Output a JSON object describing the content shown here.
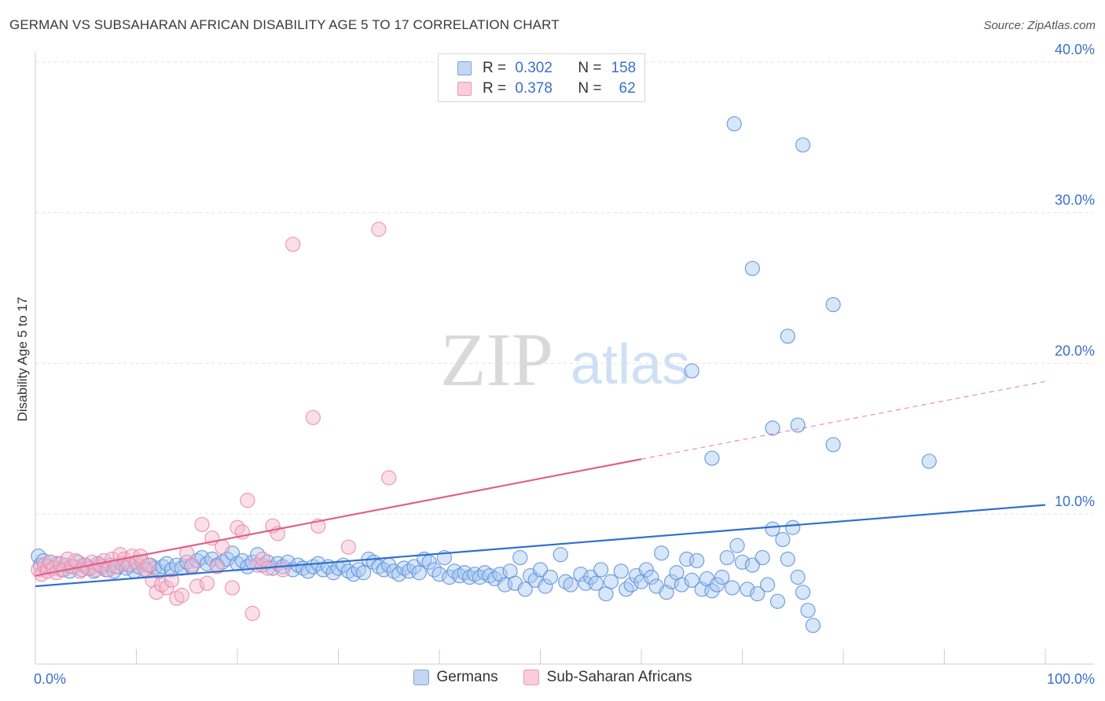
{
  "header": {
    "title": "GERMAN VS SUBSAHARAN AFRICAN DISABILITY AGE 5 TO 17 CORRELATION CHART",
    "source": "Source: ZipAtlas.com"
  },
  "watermark": {
    "zip": "ZIP",
    "atlas": "atlas"
  },
  "legend": {
    "rows": [
      {
        "r_label": "R =",
        "r_value": "0.302",
        "n_label": "N =",
        "n_value": "158",
        "color": "#a9c7f2"
      },
      {
        "r_label": "R =",
        "r_value": "0.378",
        "n_label": "N =",
        "n_value": "62",
        "color": "#f7b9cc"
      }
    ]
  },
  "bottom_legend": [
    {
      "label": "Germans",
      "color": "#a9c7f2"
    },
    {
      "label": "Sub-Saharan Africans",
      "color": "#f7b9cc"
    }
  ],
  "colors": {
    "germans_fill": "#a9c7f2",
    "germans_stroke": "#5b8fd8",
    "germans_line": "#2f6fd0",
    "africans_fill": "#f7b9cc",
    "africans_stroke": "#e889a6",
    "africans_line": "#e0608c",
    "axis_text": "#3a70c9",
    "grid": "#e3e3e3"
  },
  "chart_data": {
    "type": "scatter",
    "title": "GERMAN VS SUBSAHARAN AFRICAN DISABILITY AGE 5 TO 17 CORRELATION CHART",
    "xlabel": "",
    "ylabel": "Disability Age 5 to 17",
    "xlim": [
      0,
      100
    ],
    "ylim": [
      0,
      41
    ],
    "x_tick_labels": [
      {
        "value": 0,
        "label": "0.0%"
      },
      {
        "value": 100,
        "label": "100.0%"
      }
    ],
    "y_tick_labels": [
      {
        "value": 10,
        "label": "10.0%"
      },
      {
        "value": 20,
        "label": "20.0%"
      },
      {
        "value": 30,
        "label": "30.0%"
      },
      {
        "value": 40,
        "label": "40.0%"
      }
    ],
    "x_minor_ticks": [
      10,
      20,
      30,
      40,
      50,
      60,
      70,
      80,
      90,
      100
    ],
    "grid": true,
    "legend_position": "top-center",
    "series": [
      {
        "name": "Germans",
        "color": "#a9c7f2",
        "trend": {
          "x": [
            0,
            100
          ],
          "y": [
            5.2,
            10.6
          ],
          "dashed_from": null
        },
        "points": [
          [
            0.3,
            7.2
          ],
          [
            0.5,
            6.6
          ],
          [
            0.8,
            6.9
          ],
          [
            1.2,
            6.5
          ],
          [
            1.5,
            6.8
          ],
          [
            1.8,
            6.4
          ],
          [
            2.2,
            6.7
          ],
          [
            2.6,
            6.3
          ],
          [
            3.0,
            6.6
          ],
          [
            3.4,
            6.2
          ],
          [
            3.8,
            6.5
          ],
          [
            4.2,
            6.8
          ],
          [
            4.6,
            6.3
          ],
          [
            5.0,
            6.6
          ],
          [
            5.4,
            6.4
          ],
          [
            5.8,
            6.2
          ],
          [
            6.2,
            6.7
          ],
          [
            6.6,
            6.5
          ],
          [
            7.0,
            6.3
          ],
          [
            7.4,
            6.6
          ],
          [
            7.8,
            6.2
          ],
          [
            8.2,
            6.5
          ],
          [
            8.6,
            6.7
          ],
          [
            9.0,
            6.4
          ],
          [
            9.4,
            6.6
          ],
          [
            9.8,
            6.2
          ],
          [
            10.2,
            6.5
          ],
          [
            10.6,
            6.8
          ],
          [
            11.0,
            6.3
          ],
          [
            11.4,
            6.6
          ],
          [
            11.8,
            6.4
          ],
          [
            12.2,
            6.2
          ],
          [
            12.6,
            6.5
          ],
          [
            13.0,
            6.7
          ],
          [
            13.5,
            6.3
          ],
          [
            14.0,
            6.6
          ],
          [
            14.5,
            6.4
          ],
          [
            15.0,
            6.8
          ],
          [
            15.5,
            6.5
          ],
          [
            16.0,
            6.9
          ],
          [
            16.5,
            7.1
          ],
          [
            17.0,
            6.7
          ],
          [
            17.5,
            7.0
          ],
          [
            18.0,
            6.6
          ],
          [
            18.5,
            6.8
          ],
          [
            19.0,
            7.0
          ],
          [
            19.5,
            7.4
          ],
          [
            20.0,
            6.7
          ],
          [
            20.5,
            6.9
          ],
          [
            21.0,
            6.5
          ],
          [
            21.5,
            6.8
          ],
          [
            22.0,
            7.3
          ],
          [
            22.5,
            6.6
          ],
          [
            23.0,
            6.8
          ],
          [
            23.5,
            6.4
          ],
          [
            24.0,
            6.7
          ],
          [
            24.5,
            6.5
          ],
          [
            25.0,
            6.8
          ],
          [
            25.5,
            6.3
          ],
          [
            26.0,
            6.6
          ],
          [
            26.5,
            6.4
          ],
          [
            27.0,
            6.2
          ],
          [
            27.5,
            6.5
          ],
          [
            28.0,
            6.7
          ],
          [
            28.5,
            6.3
          ],
          [
            29.0,
            6.5
          ],
          [
            29.5,
            6.1
          ],
          [
            30.0,
            6.4
          ],
          [
            30.5,
            6.6
          ],
          [
            31.0,
            6.2
          ],
          [
            31.5,
            6.0
          ],
          [
            32.0,
            6.3
          ],
          [
            32.5,
            6.1
          ],
          [
            33.0,
            7.0
          ],
          [
            33.5,
            6.8
          ],
          [
            34.0,
            6.5
          ],
          [
            34.5,
            6.3
          ],
          [
            35.0,
            6.6
          ],
          [
            35.5,
            6.2
          ],
          [
            36.0,
            6.0
          ],
          [
            36.5,
            6.4
          ],
          [
            37.0,
            6.2
          ],
          [
            37.5,
            6.5
          ],
          [
            38.0,
            6.1
          ],
          [
            38.5,
            7.0
          ],
          [
            39.0,
            6.8
          ],
          [
            39.5,
            6.3
          ],
          [
            40.0,
            6.0
          ],
          [
            40.5,
            7.1
          ],
          [
            41.0,
            5.8
          ],
          [
            41.5,
            6.2
          ],
          [
            42.0,
            5.9
          ],
          [
            42.5,
            6.1
          ],
          [
            43.0,
            5.8
          ],
          [
            43.5,
            6.0
          ],
          [
            44.0,
            5.8
          ],
          [
            44.5,
            6.1
          ],
          [
            45.0,
            5.9
          ],
          [
            45.5,
            5.7
          ],
          [
            46.0,
            6.0
          ],
          [
            46.5,
            5.3
          ],
          [
            47.0,
            6.2
          ],
          [
            47.5,
            5.4
          ],
          [
            48.0,
            7.1
          ],
          [
            48.5,
            5.0
          ],
          [
            49.0,
            5.9
          ],
          [
            49.5,
            5.6
          ],
          [
            50.0,
            6.3
          ],
          [
            50.5,
            5.2
          ],
          [
            51.0,
            5.8
          ],
          [
            52.0,
            7.3
          ],
          [
            52.5,
            5.5
          ],
          [
            53.0,
            5.3
          ],
          [
            54.0,
            6.0
          ],
          [
            54.5,
            5.4
          ],
          [
            55.0,
            5.8
          ],
          [
            55.5,
            5.4
          ],
          [
            56.0,
            6.3
          ],
          [
            56.5,
            4.7
          ],
          [
            57.0,
            5.5
          ],
          [
            58.0,
            6.2
          ],
          [
            58.5,
            5.0
          ],
          [
            59.0,
            5.3
          ],
          [
            59.5,
            5.9
          ],
          [
            60.0,
            5.5
          ],
          [
            60.5,
            6.3
          ],
          [
            61.0,
            5.8
          ],
          [
            61.5,
            5.2
          ],
          [
            62.0,
            7.4
          ],
          [
            62.5,
            4.8
          ],
          [
            63.0,
            5.5
          ],
          [
            63.5,
            6.1
          ],
          [
            64.0,
            5.3
          ],
          [
            64.5,
            7.0
          ],
          [
            65.0,
            5.6
          ],
          [
            65.5,
            6.9
          ],
          [
            66.0,
            5.0
          ],
          [
            66.5,
            5.7
          ],
          [
            67.0,
            4.9
          ],
          [
            67.5,
            5.3
          ],
          [
            68.0,
            5.8
          ],
          [
            68.5,
            7.1
          ],
          [
            69.0,
            5.1
          ],
          [
            69.5,
            7.9
          ],
          [
            70.0,
            6.8
          ],
          [
            70.5,
            5.0
          ],
          [
            71.0,
            6.6
          ],
          [
            71.5,
            4.7
          ],
          [
            72.0,
            7.1
          ],
          [
            72.5,
            5.3
          ],
          [
            73.0,
            9.0
          ],
          [
            73.5,
            4.2
          ],
          [
            74.0,
            8.3
          ],
          [
            74.5,
            7.0
          ],
          [
            75.0,
            9.1
          ],
          [
            75.5,
            5.8
          ],
          [
            76.0,
            4.8
          ],
          [
            76.5,
            3.6
          ],
          [
            77.0,
            2.6
          ],
          [
            69.2,
            35.9
          ],
          [
            76.0,
            34.5
          ],
          [
            71.0,
            26.3
          ],
          [
            79.0,
            23.9
          ],
          [
            74.5,
            21.8
          ],
          [
            65.0,
            19.5
          ],
          [
            73.0,
            15.7
          ],
          [
            75.5,
            15.9
          ],
          [
            79.0,
            14.6
          ],
          [
            88.5,
            13.5
          ],
          [
            67.0,
            13.7
          ]
        ]
      },
      {
        "name": "Sub-Saharan Africans",
        "color": "#f7b9cc",
        "trend": {
          "x": [
            0,
            100
          ],
          "y": [
            5.9,
            18.8
          ],
          "dashed_from": 60
        },
        "points": [
          [
            0.3,
            6.3
          ],
          [
            0.6,
            6.0
          ],
          [
            0.9,
            6.6
          ],
          [
            1.2,
            6.2
          ],
          [
            1.5,
            6.8
          ],
          [
            1.8,
            6.4
          ],
          [
            2.1,
            6.1
          ],
          [
            2.5,
            6.7
          ],
          [
            2.8,
            6.3
          ],
          [
            3.2,
            7.0
          ],
          [
            3.6,
            6.5
          ],
          [
            4.0,
            6.9
          ],
          [
            4.4,
            6.2
          ],
          [
            4.8,
            6.6
          ],
          [
            5.2,
            6.4
          ],
          [
            5.6,
            6.8
          ],
          [
            6.0,
            6.3
          ],
          [
            6.4,
            6.6
          ],
          [
            6.8,
            6.9
          ],
          [
            7.2,
            6.3
          ],
          [
            7.6,
            7.0
          ],
          [
            8.0,
            6.5
          ],
          [
            8.4,
            7.3
          ],
          [
            8.8,
            7.0
          ],
          [
            9.2,
            6.6
          ],
          [
            9.6,
            7.2
          ],
          [
            10.0,
            6.8
          ],
          [
            10.4,
            7.2
          ],
          [
            10.8,
            6.3
          ],
          [
            11.2,
            6.6
          ],
          [
            11.6,
            5.6
          ],
          [
            12.0,
            4.8
          ],
          [
            12.5,
            5.3
          ],
          [
            13.0,
            5.1
          ],
          [
            13.5,
            5.6
          ],
          [
            14.0,
            4.4
          ],
          [
            14.5,
            4.6
          ],
          [
            15.0,
            7.4
          ],
          [
            15.5,
            6.6
          ],
          [
            16.0,
            5.2
          ],
          [
            16.5,
            9.3
          ],
          [
            17.0,
            5.4
          ],
          [
            17.5,
            8.4
          ],
          [
            18.0,
            6.5
          ],
          [
            18.5,
            7.8
          ],
          [
            19.5,
            5.1
          ],
          [
            20.0,
            9.1
          ],
          [
            20.5,
            8.8
          ],
          [
            21.0,
            10.9
          ],
          [
            21.5,
            3.4
          ],
          [
            22.0,
            6.6
          ],
          [
            22.5,
            7.0
          ],
          [
            23.0,
            6.4
          ],
          [
            23.5,
            9.2
          ],
          [
            24.0,
            8.7
          ],
          [
            24.5,
            6.3
          ],
          [
            25.5,
            27.9
          ],
          [
            27.5,
            16.4
          ],
          [
            28.0,
            9.2
          ],
          [
            31.0,
            7.8
          ],
          [
            34.0,
            28.9
          ],
          [
            35.0,
            12.4
          ]
        ]
      }
    ]
  }
}
